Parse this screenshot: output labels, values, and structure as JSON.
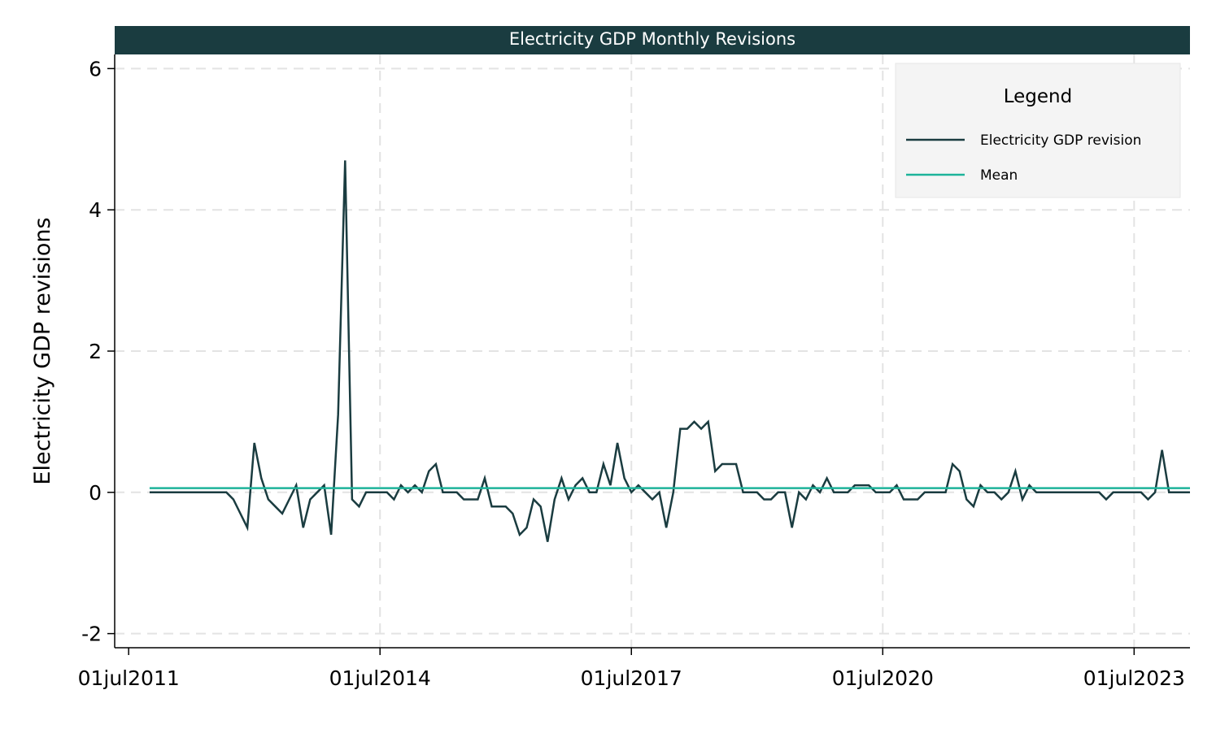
{
  "chart_data": {
    "type": "line",
    "title": "Electricity GDP Monthly Revisions",
    "xlabel": "",
    "ylabel": "Electricity GDP revisions",
    "x_start": "2011-10",
    "x_ticks": [
      "01jul2011",
      "01jul2014",
      "01jul2017",
      "01jul2020",
      "01jul2023"
    ],
    "x_tick_dates": [
      "2011-07",
      "2014-07",
      "2017-07",
      "2020-07",
      "2023-07"
    ],
    "xlim": [
      "2011-05",
      "2024-03"
    ],
    "y_ticks": [
      -2,
      0,
      2,
      4,
      6
    ],
    "ylim": [
      -2.2,
      6.2
    ],
    "grid": true,
    "legend": {
      "title": "Legend",
      "position": "top-right"
    },
    "colors": {
      "revision": "#1a3c40",
      "mean": "#1db39a",
      "title_bar": "#1a3c40",
      "legend_bg": "#f4f4f4"
    },
    "series": [
      {
        "name": "Electricity GDP revision",
        "values": [
          0,
          0,
          0,
          0,
          0,
          0,
          0,
          0,
          0,
          0,
          0,
          0,
          -0.1,
          -0.3,
          -0.5,
          0.7,
          0.2,
          -0.1,
          -0.2,
          -0.3,
          -0.1,
          0.1,
          -0.5,
          -0.1,
          0,
          0.1,
          -0.6,
          1.1,
          4.7,
          -0.1,
          -0.2,
          0,
          0,
          0,
          0,
          -0.1,
          0.1,
          0,
          0.1,
          0,
          0.3,
          0.4,
          0,
          0,
          0,
          -0.1,
          -0.1,
          -0.1,
          0.2,
          -0.2,
          -0.2,
          -0.2,
          -0.3,
          -0.6,
          -0.5,
          -0.1,
          -0.2,
          -0.7,
          -0.1,
          0.2,
          -0.1,
          0.1,
          0.2,
          0,
          0,
          0.4,
          0.1,
          0.7,
          0.2,
          0,
          0.1,
          0,
          -0.1,
          0,
          -0.5,
          0,
          0.9,
          0.9,
          1.0,
          0.9,
          1.0,
          0.3,
          0.4,
          0.4,
          0.4,
          0,
          0,
          0,
          -0.1,
          -0.1,
          0,
          0,
          -0.5,
          0,
          -0.1,
          0.1,
          0,
          0.2,
          0,
          0,
          0,
          0.1,
          0.1,
          0.1,
          0,
          0,
          0,
          0.1,
          -0.1,
          -0.1,
          -0.1,
          0,
          0,
          0,
          0,
          0.4,
          0.3,
          -0.1,
          -0.2,
          0.1,
          0,
          0,
          -0.1,
          0,
          0.3,
          -0.1,
          0.1,
          0,
          0,
          0,
          0,
          0,
          0,
          0,
          0,
          0,
          0,
          -0.1,
          0,
          0,
          0,
          0,
          0,
          -0.1,
          0,
          0.6,
          0,
          0,
          0,
          0
        ]
      },
      {
        "name": "Mean",
        "values": [
          0.06
        ]
      }
    ]
  }
}
